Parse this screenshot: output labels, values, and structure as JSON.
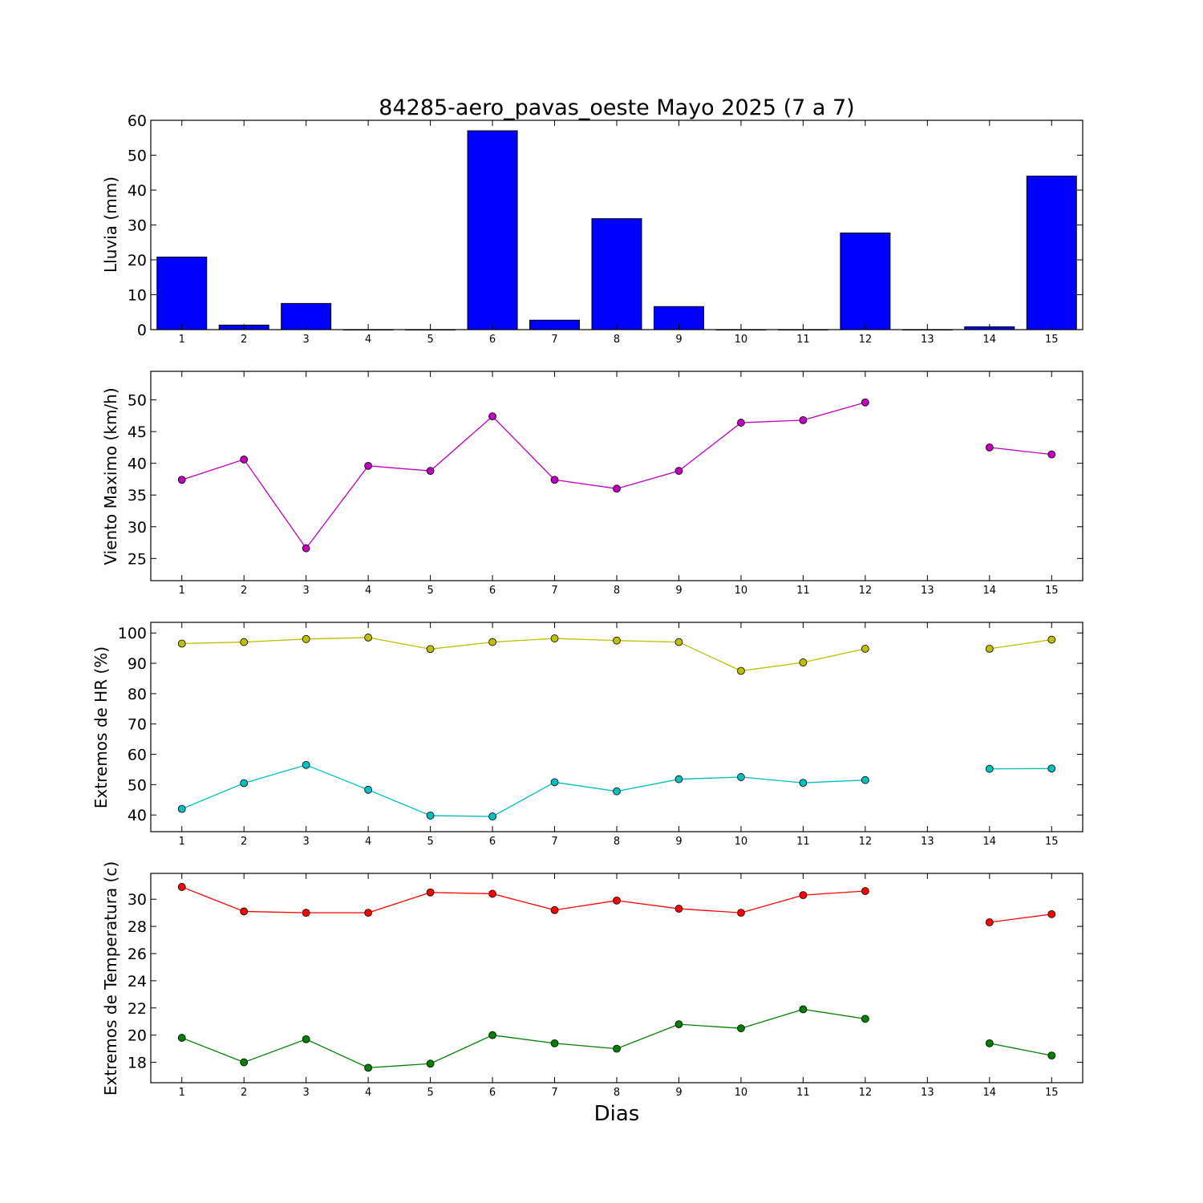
{
  "figure": {
    "title": "84285-aero_pavas_oeste Mayo 2025  (7 a 7)",
    "xlabel": "Dias"
  },
  "chart_data": [
    {
      "type": "bar",
      "ylabel": "Lluvia (mm)",
      "x": [
        1,
        2,
        3,
        4,
        5,
        6,
        7,
        8,
        9,
        10,
        11,
        12,
        13,
        14,
        15
      ],
      "xlim": [
        0.5,
        15.5
      ],
      "ylim": [
        0,
        60
      ],
      "yticks": [
        0,
        10,
        20,
        30,
        40,
        50,
        60
      ],
      "xticks": [
        1,
        2,
        3,
        4,
        5,
        6,
        7,
        8,
        9,
        10,
        11,
        12,
        13,
        14,
        15
      ],
      "grid": false,
      "series": [
        {
          "values": [
            20.8,
            1.3,
            7.5,
            0,
            0,
            57,
            2.7,
            31.8,
            6.6,
            0,
            0,
            27.7,
            0,
            0.8,
            44
          ],
          "color": "#0000ff"
        }
      ]
    },
    {
      "type": "line",
      "ylabel": "Viento Maximo (km/h)",
      "x": [
        1,
        2,
        3,
        4,
        5,
        6,
        7,
        8,
        9,
        10,
        11,
        12,
        13,
        14,
        15
      ],
      "xlim": [
        0.5,
        15.5
      ],
      "ylim": [
        21.5,
        54.5
      ],
      "yticks": [
        25,
        30,
        35,
        40,
        45,
        50
      ],
      "xticks": [
        1,
        2,
        3,
        4,
        5,
        6,
        7,
        8,
        9,
        10,
        11,
        12,
        13,
        14,
        15
      ],
      "grid": false,
      "series": [
        {
          "values": [
            37.4,
            40.6,
            26.6,
            39.6,
            38.8,
            47.4,
            37.4,
            36.0,
            38.8,
            46.4,
            46.8,
            49.6,
            null,
            42.5,
            41.4
          ],
          "color": "#bf00bf"
        }
      ]
    },
    {
      "type": "line",
      "ylabel": "Extremos de HR (%)",
      "x": [
        1,
        2,
        3,
        4,
        5,
        6,
        7,
        8,
        9,
        10,
        11,
        12,
        13,
        14,
        15
      ],
      "xlim": [
        0.5,
        15.5
      ],
      "ylim": [
        34.5,
        103.5
      ],
      "yticks": [
        40,
        50,
        60,
        70,
        80,
        90,
        100
      ],
      "xticks": [
        1,
        2,
        3,
        4,
        5,
        6,
        7,
        8,
        9,
        10,
        11,
        12,
        13,
        14,
        15
      ],
      "grid": false,
      "series": [
        {
          "values": [
            96.5,
            97,
            98,
            98.5,
            94.7,
            97,
            98.2,
            97.5,
            97,
            87.5,
            90.3,
            94.8,
            null,
            94.8,
            97.8
          ],
          "color": "#bfbf00"
        },
        {
          "values": [
            42,
            50.5,
            56.5,
            48.3,
            39.8,
            39.5,
            50.8,
            47.8,
            51.8,
            52.5,
            50.6,
            51.5,
            null,
            55.2,
            55.3
          ],
          "color": "#00bfbf"
        }
      ]
    },
    {
      "type": "line",
      "ylabel": "Extremos de Temperatura (c)",
      "x": [
        1,
        2,
        3,
        4,
        5,
        6,
        7,
        8,
        9,
        10,
        11,
        12,
        13,
        14,
        15
      ],
      "xlim": [
        0.5,
        15.5
      ],
      "ylim": [
        16.5,
        31.9
      ],
      "yticks": [
        18,
        20,
        22,
        24,
        26,
        28,
        30
      ],
      "xticks": [
        1,
        2,
        3,
        4,
        5,
        6,
        7,
        8,
        9,
        10,
        11,
        12,
        13,
        14,
        15
      ],
      "grid": false,
      "series": [
        {
          "values": [
            30.9,
            29.1,
            29.0,
            29.0,
            30.5,
            30.4,
            29.2,
            29.9,
            29.3,
            29.0,
            30.3,
            30.6,
            null,
            28.3,
            28.9
          ],
          "color": "#ff0000"
        },
        {
          "values": [
            19.8,
            18.0,
            19.7,
            17.6,
            17.9,
            20.0,
            19.4,
            19.0,
            20.8,
            20.5,
            21.9,
            21.2,
            null,
            19.4,
            18.5
          ],
          "color": "#008000"
        }
      ]
    }
  ]
}
